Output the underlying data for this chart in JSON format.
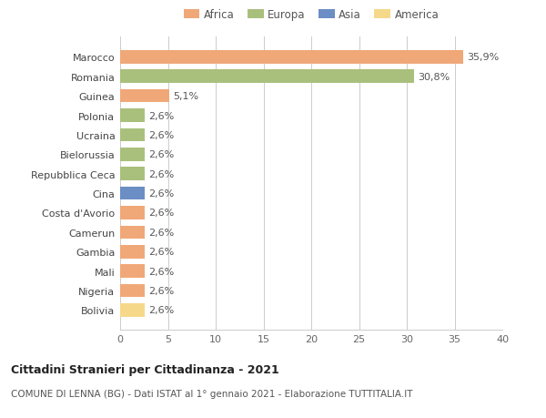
{
  "categories": [
    "Bolivia",
    "Nigeria",
    "Mali",
    "Gambia",
    "Camerun",
    "Costa d'Avorio",
    "Cina",
    "Repubblica Ceca",
    "Bielorussia",
    "Ucraina",
    "Polonia",
    "Guinea",
    "Romania",
    "Marocco"
  ],
  "values": [
    2.6,
    2.6,
    2.6,
    2.6,
    2.6,
    2.6,
    2.6,
    2.6,
    2.6,
    2.6,
    2.6,
    5.1,
    30.8,
    35.9
  ],
  "percentages": [
    "2,6%",
    "2,6%",
    "2,6%",
    "2,6%",
    "2,6%",
    "2,6%",
    "2,6%",
    "2,6%",
    "2,6%",
    "2,6%",
    "2,6%",
    "5,1%",
    "30,8%",
    "35,9%"
  ],
  "colors": [
    "#F5D88A",
    "#F0A878",
    "#F0A878",
    "#F0A878",
    "#F0A878",
    "#F0A878",
    "#6B8EC4",
    "#A9C07C",
    "#A9C07C",
    "#A9C07C",
    "#A9C07C",
    "#F0A878",
    "#A9C07C",
    "#F0A878"
  ],
  "legend_labels": [
    "Africa",
    "Europa",
    "Asia",
    "America"
  ],
  "legend_colors": [
    "#F0A878",
    "#A9C07C",
    "#6B8EC4",
    "#F5D88A"
  ],
  "xlim": [
    0,
    40
  ],
  "xticks": [
    0,
    5,
    10,
    15,
    20,
    25,
    30,
    35,
    40
  ],
  "title_bold": "Cittadini Stranieri per Cittadinanza - 2021",
  "subtitle": "COMUNE DI LENNA (BG) - Dati ISTAT al 1° gennaio 2021 - Elaborazione TUTTITALIA.IT",
  "bg_color": "#ffffff",
  "grid_color": "#cccccc",
  "bar_height": 0.68,
  "label_fontsize": 8,
  "tick_fontsize": 8
}
